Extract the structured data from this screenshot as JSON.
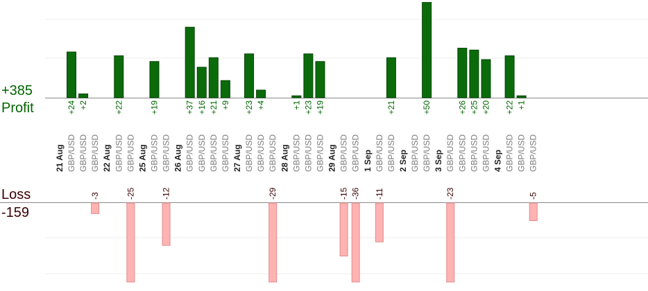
{
  "summary": {
    "profit_total": "+385",
    "profit_label": "Profit",
    "loss_label": "Loss",
    "loss_total": "-159"
  },
  "colors": {
    "profit_bar": "#0b6b0b",
    "profit_bar_stroke": "#074507",
    "profit_text": "#006400",
    "loss_bar": "#ffb3b3",
    "loss_bar_stroke": "#e08a8a",
    "loss_text": "#3a0000",
    "date_text": "#222222",
    "pair_text": "#7a7a7a",
    "gridline": "#eeeeee",
    "axis": "#888888"
  },
  "chart_data": [
    {
      "type": "bar",
      "title": "Profit",
      "ylim": [
        0,
        50
      ],
      "date_groups": [
        {
          "date": "21 Aug",
          "pairs": [
            "GBP/USD",
            "GBP/USD",
            "GBP/USD"
          ],
          "values": [
            24,
            2,
            null
          ]
        },
        {
          "date": "22 Aug",
          "pairs": [
            "GBP/USD",
            "GBP/USD"
          ],
          "values": [
            22,
            null
          ]
        },
        {
          "date": "25 Aug",
          "pairs": [
            "GBP/USD",
            "GBP/USD"
          ],
          "values": [
            19,
            null
          ]
        },
        {
          "date": "26 Aug",
          "pairs": [
            "GBP/USD",
            "GBP/USD",
            "GBP/USD",
            "GBP/USD"
          ],
          "values": [
            37,
            16,
            21,
            9
          ]
        },
        {
          "date": "27 Aug",
          "pairs": [
            "GBP/USD",
            "GBP/USD",
            "GBP/USD"
          ],
          "values": [
            23,
            4,
            null
          ]
        },
        {
          "date": "28 Aug",
          "pairs": [
            "GBP/USD",
            "GBP/USD",
            "GBP/USD"
          ],
          "values": [
            1,
            23,
            19
          ]
        },
        {
          "date": "29 Aug",
          "pairs": [
            "GBP/USD",
            "GBP/USD"
          ],
          "values": [
            null,
            null
          ]
        },
        {
          "date": "1 Sep",
          "pairs": [
            "GBP/USD",
            "GBP/USD"
          ],
          "values": [
            null,
            21
          ]
        },
        {
          "date": "2 Sep",
          "pairs": [
            "GBP/USD",
            "GBP/USD"
          ],
          "values": [
            null,
            50
          ]
        },
        {
          "date": "3 Sep",
          "pairs": [
            "GBP/USD",
            "GBP/USD",
            "GBP/USD",
            "GBP/USD"
          ],
          "values": [
            null,
            26,
            25,
            20
          ]
        },
        {
          "date": "4 Sep",
          "pairs": [
            "GBP/USD",
            "GBP/USD",
            "GBP/USD"
          ],
          "values": [
            22,
            1,
            null
          ]
        }
      ]
    },
    {
      "type": "bar",
      "title": "Loss",
      "ylim": [
        -20,
        0
      ],
      "date_groups": [
        {
          "date": "21 Aug",
          "pairs": [
            "GBP/USD",
            "GBP/USD",
            "GBP/USD"
          ],
          "values": [
            null,
            null,
            -3
          ]
        },
        {
          "date": "22 Aug",
          "pairs": [
            "GBP/USD",
            "GBP/USD"
          ],
          "values": [
            null,
            -25
          ]
        },
        {
          "date": "25 Aug",
          "pairs": [
            "GBP/USD",
            "GBP/USD"
          ],
          "values": [
            null,
            -12
          ]
        },
        {
          "date": "26 Aug",
          "pairs": [
            "GBP/USD",
            "GBP/USD",
            "GBP/USD",
            "GBP/USD"
          ],
          "values": [
            null,
            null,
            null,
            null
          ]
        },
        {
          "date": "27 Aug",
          "pairs": [
            "GBP/USD",
            "GBP/USD",
            "GBP/USD"
          ],
          "values": [
            null,
            null,
            -29
          ]
        },
        {
          "date": "28 Aug",
          "pairs": [
            "GBP/USD",
            "GBP/USD",
            "GBP/USD"
          ],
          "values": [
            null,
            null,
            null
          ]
        },
        {
          "date": "29 Aug",
          "pairs": [
            "GBP/USD",
            "GBP/USD"
          ],
          "values": [
            -15,
            -36
          ]
        },
        {
          "date": "1 Sep",
          "pairs": [
            "GBP/USD",
            "GBP/USD"
          ],
          "values": [
            -11,
            null
          ]
        },
        {
          "date": "2 Sep",
          "pairs": [
            "GBP/USD",
            "GBP/USD"
          ],
          "values": [
            null,
            null
          ]
        },
        {
          "date": "3 Sep",
          "pairs": [
            "GBP/USD",
            "GBP/USD",
            "GBP/USD",
            "GBP/USD"
          ],
          "values": [
            -23,
            null,
            null,
            null
          ]
        },
        {
          "date": "4 Sep",
          "pairs": [
            "GBP/USD",
            "GBP/USD",
            "GBP/USD"
          ],
          "values": [
            null,
            null,
            -5
          ]
        }
      ]
    }
  ]
}
